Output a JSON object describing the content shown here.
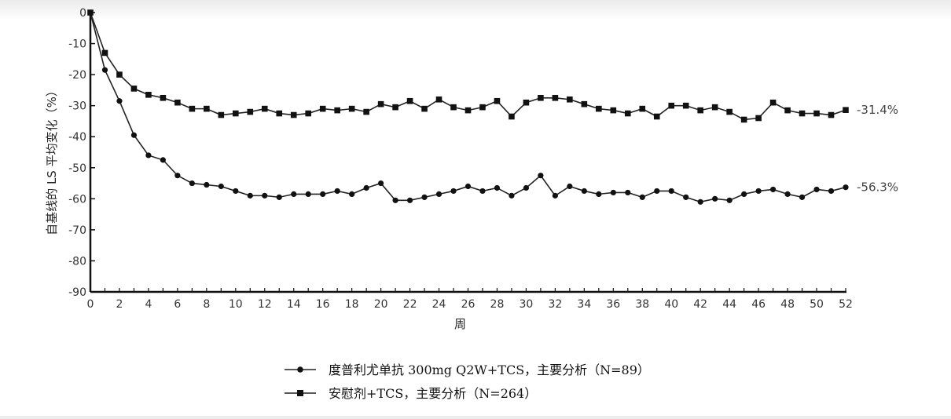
{
  "chart_data": {
    "type": "line",
    "title": "",
    "xlabel": "周",
    "ylabel": "自基线的 LS 平均变化（%）",
    "xlim": [
      0,
      52
    ],
    "ylim": [
      -90,
      0
    ],
    "x_ticks": [
      0,
      2,
      4,
      6,
      8,
      10,
      12,
      14,
      16,
      18,
      20,
      22,
      24,
      26,
      28,
      30,
      32,
      34,
      36,
      38,
      40,
      42,
      44,
      46,
      48,
      50,
      52
    ],
    "y_ticks": [
      0,
      -10,
      -20,
      -30,
      -40,
      -50,
      -60,
      -70,
      -80,
      -90
    ],
    "grid": false,
    "legend_position": "bottom",
    "x": [
      0,
      1,
      2,
      3,
      4,
      5,
      6,
      7,
      8,
      9,
      10,
      11,
      12,
      13,
      14,
      15,
      16,
      17,
      18,
      19,
      20,
      21,
      22,
      23,
      24,
      25,
      26,
      27,
      28,
      29,
      30,
      31,
      32,
      33,
      34,
      35,
      36,
      37,
      38,
      39,
      40,
      41,
      42,
      43,
      44,
      45,
      46,
      47,
      48,
      49,
      50,
      51,
      52
    ],
    "series": [
      {
        "name": "度普利尤单抗  300mg Q2W+TCS，主要分析（N=89）",
        "marker": "circle",
        "end_label": "-56.3%",
        "values": [
          0,
          -18.5,
          -28.5,
          -39.5,
          -46,
          -47.5,
          -52.5,
          -55,
          -55.5,
          -56,
          -57.5,
          -59,
          -59,
          -59.5,
          -58.5,
          -58.5,
          -58.5,
          -57.5,
          -58.5,
          -56.5,
          -55,
          -60.5,
          -60.5,
          -59.5,
          -58.5,
          -57.5,
          -56,
          -57.5,
          -56.5,
          -59,
          -56.5,
          -52.5,
          -59,
          -56,
          -57.5,
          -58.5,
          -58,
          -58,
          -59.5,
          -57.5,
          -57.5,
          -59.5,
          -61,
          -60,
          -60.5,
          -58.5,
          -57.5,
          -57,
          -58.5,
          -59.5,
          -57,
          -57.5,
          -56.3
        ]
      },
      {
        "name": "安慰剂+TCS，主要分析（N=264）",
        "marker": "square",
        "end_label": "-31.4%",
        "values": [
          0,
          -13,
          -20,
          -24.5,
          -26.5,
          -27.5,
          -29,
          -31,
          -31,
          -33,
          -32.5,
          -32,
          -31,
          -32.5,
          -33,
          -32.5,
          -31,
          -31.5,
          -31,
          -32,
          -29.5,
          -30.5,
          -28.5,
          -31,
          -28,
          -30.5,
          -31.5,
          -30.5,
          -28.5,
          -33.5,
          -29,
          -27.5,
          -27.5,
          -28,
          -29.5,
          -31,
          -31.5,
          -32.5,
          -31,
          -33.5,
          -30,
          -30,
          -31.5,
          -30.5,
          -32,
          -34.5,
          -34,
          -29,
          -31.5,
          -32.5,
          -32.5,
          -33,
          -31.4
        ]
      }
    ]
  }
}
